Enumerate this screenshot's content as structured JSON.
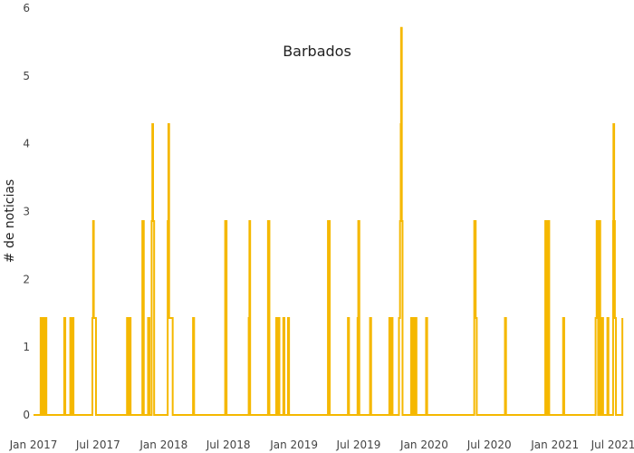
{
  "chart_data": {
    "type": "line",
    "title": "Barbados",
    "xlabel": "",
    "ylabel": "# de noticias",
    "xlim": [
      "2017-01-01",
      "2021-07-01"
    ],
    "ylim": [
      0,
      6
    ],
    "grid": false,
    "line_shape": "hv",
    "x_ticks": [
      "2017-01-01",
      "2017-07-01",
      "2018-01-01",
      "2018-07-01",
      "2019-01-01",
      "2019-07-01",
      "2020-01-01",
      "2020-07-01",
      "2021-01-01",
      "2021-07-01"
    ],
    "x_tick_labels": [
      "Jan 2017",
      "Jul 2017",
      "Jan 2018",
      "Jul 2018",
      "Jan 2019",
      "Jul 2019",
      "Jan 2020",
      "Jul 2020",
      "Jan 2021",
      "Jul 2021"
    ],
    "y_ticks": [
      0,
      1,
      2,
      3,
      4,
      5,
      6
    ],
    "y_tick_labels": [
      "0",
      "1",
      "2",
      "3",
      "4",
      "5",
      "6"
    ],
    "series": [
      {
        "name": "",
        "color": "#f5b800",
        "points": [
          [
            "2017-01-01",
            0
          ],
          [
            "2017-01-21",
            1.43
          ],
          [
            "2017-01-24",
            0
          ],
          [
            "2017-01-27",
            1.43
          ],
          [
            "2017-01-30",
            0
          ],
          [
            "2017-02-03",
            1.43
          ],
          [
            "2017-02-06",
            0
          ],
          [
            "2017-03-28",
            1.43
          ],
          [
            "2017-03-31",
            0
          ],
          [
            "2017-04-14",
            1.43
          ],
          [
            "2017-04-17",
            0
          ],
          [
            "2017-04-20",
            1.43
          ],
          [
            "2017-04-23",
            0
          ],
          [
            "2017-06-15",
            1.43
          ],
          [
            "2017-06-17",
            2.86
          ],
          [
            "2017-06-19",
            1.43
          ],
          [
            "2017-06-25",
            0
          ],
          [
            "2017-09-20",
            1.43
          ],
          [
            "2017-09-23",
            0
          ],
          [
            "2017-09-27",
            1.43
          ],
          [
            "2017-09-30",
            0
          ],
          [
            "2017-11-02",
            2.86
          ],
          [
            "2017-11-06",
            0
          ],
          [
            "2017-11-18",
            1.43
          ],
          [
            "2017-11-22",
            0
          ],
          [
            "2017-11-28",
            2.86
          ],
          [
            "2017-11-30",
            4.29
          ],
          [
            "2017-12-02",
            2.86
          ],
          [
            "2017-12-05",
            0
          ],
          [
            "2018-01-12",
            2.86
          ],
          [
            "2018-01-14",
            4.29
          ],
          [
            "2018-01-16",
            1.43
          ],
          [
            "2018-01-26",
            0
          ],
          [
            "2018-03-24",
            1.43
          ],
          [
            "2018-03-27",
            0
          ],
          [
            "2018-06-22",
            2.86
          ],
          [
            "2018-06-26",
            0
          ],
          [
            "2018-08-27",
            1.43
          ],
          [
            "2018-08-29",
            2.86
          ],
          [
            "2018-08-31",
            0
          ],
          [
            "2018-10-20",
            2.86
          ],
          [
            "2018-10-24",
            0
          ],
          [
            "2018-11-12",
            1.43
          ],
          [
            "2018-11-15",
            0
          ],
          [
            "2018-11-18",
            1.43
          ],
          [
            "2018-11-21",
            0
          ],
          [
            "2018-12-02",
            1.43
          ],
          [
            "2018-12-05",
            0
          ],
          [
            "2018-12-15",
            1.43
          ],
          [
            "2018-12-18",
            0
          ],
          [
            "2019-04-06",
            2.86
          ],
          [
            "2019-04-11",
            0
          ],
          [
            "2019-06-01",
            1.43
          ],
          [
            "2019-06-04",
            0
          ],
          [
            "2019-06-28",
            1.43
          ],
          [
            "2019-06-30",
            2.86
          ],
          [
            "2019-07-03",
            0
          ],
          [
            "2019-08-02",
            1.43
          ],
          [
            "2019-08-05",
            0
          ],
          [
            "2019-09-25",
            1.43
          ],
          [
            "2019-09-28",
            0
          ],
          [
            "2019-10-01",
            1.43
          ],
          [
            "2019-10-04",
            0
          ],
          [
            "2019-10-22",
            1.43
          ],
          [
            "2019-10-25",
            2.86
          ],
          [
            "2019-10-27",
            4.29
          ],
          [
            "2019-10-28",
            5.71
          ],
          [
            "2019-10-30",
            2.86
          ],
          [
            "2019-11-01",
            0
          ],
          [
            "2019-11-25",
            1.43
          ],
          [
            "2019-11-28",
            0
          ],
          [
            "2019-12-02",
            1.43
          ],
          [
            "2019-12-05",
            0
          ],
          [
            "2019-12-07",
            1.43
          ],
          [
            "2019-12-10",
            0
          ],
          [
            "2020-01-06",
            1.43
          ],
          [
            "2020-01-09",
            0
          ],
          [
            "2020-05-20",
            2.86
          ],
          [
            "2020-05-24",
            1.43
          ],
          [
            "2020-05-27",
            0
          ],
          [
            "2020-08-14",
            1.43
          ],
          [
            "2020-08-17",
            0
          ],
          [
            "2020-12-05",
            2.86
          ],
          [
            "2020-12-08",
            0
          ],
          [
            "2020-12-13",
            2.86
          ],
          [
            "2020-12-16",
            0
          ],
          [
            "2021-01-24",
            1.43
          ],
          [
            "2021-01-27",
            0
          ],
          [
            "2021-04-25",
            1.43
          ],
          [
            "2021-04-28",
            2.86
          ],
          [
            "2021-05-02",
            0
          ],
          [
            "2021-05-05",
            2.86
          ],
          [
            "2021-05-08",
            1.43
          ],
          [
            "2021-05-10",
            0
          ],
          [
            "2021-05-13",
            1.43
          ],
          [
            "2021-05-16",
            0
          ],
          [
            "2021-05-28",
            1.43
          ],
          [
            "2021-05-31",
            0
          ],
          [
            "2021-06-13",
            2.86
          ],
          [
            "2021-06-14",
            4.29
          ],
          [
            "2021-06-16",
            2.86
          ],
          [
            "2021-06-18",
            1.43
          ],
          [
            "2021-06-21",
            0
          ],
          [
            "2021-07-09",
            1.43
          ]
        ]
      }
    ]
  }
}
